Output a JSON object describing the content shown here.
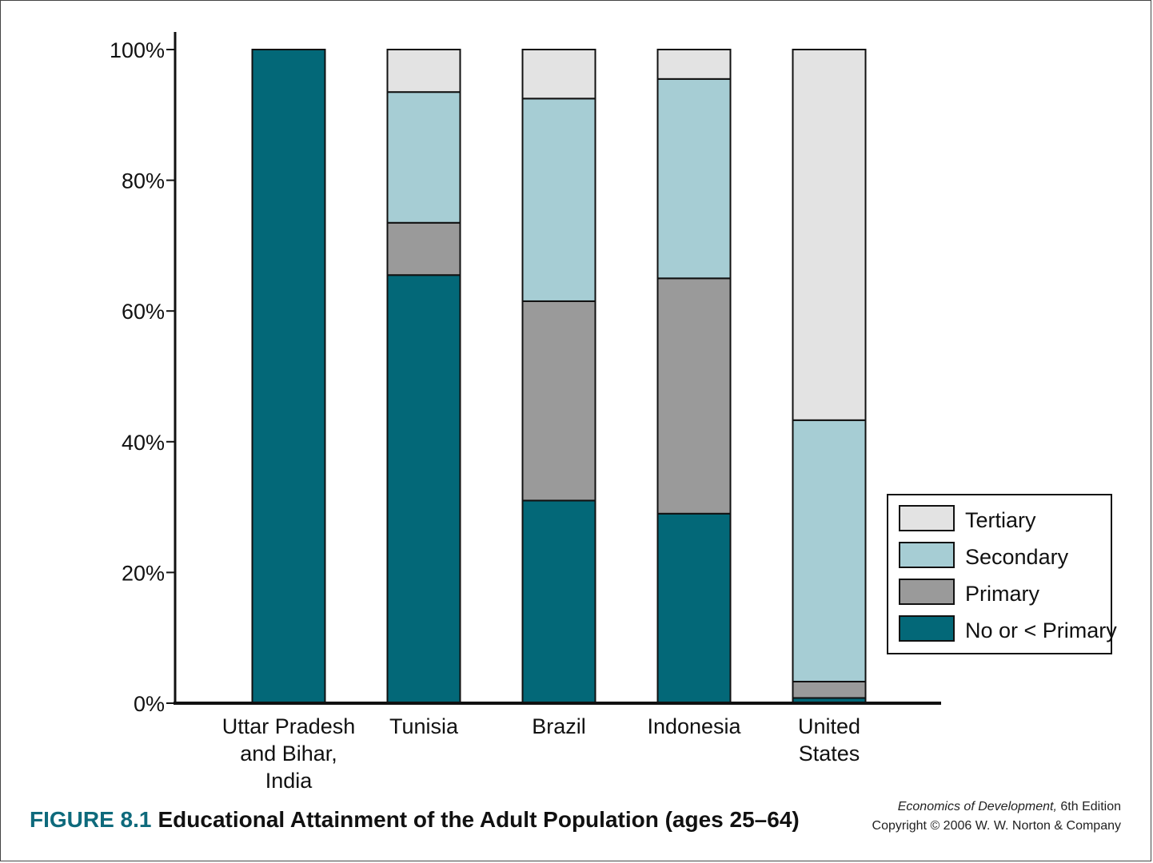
{
  "chart_data": {
    "type": "bar",
    "stacked": true,
    "categories": [
      [
        "Uttar Pradesh",
        "and Bihar,",
        "India"
      ],
      [
        "Tunisia"
      ],
      [
        "Brazil"
      ],
      [
        "Indonesia"
      ],
      [
        "United",
        "States"
      ]
    ],
    "series": [
      {
        "name": "No or < Primary",
        "color": "#036878",
        "values": [
          100,
          65.5,
          31,
          29,
          0.8
        ]
      },
      {
        "name": "Primary",
        "color": "#9a9a9a",
        "values": [
          0,
          8,
          30.5,
          36,
          2.5
        ]
      },
      {
        "name": "Secondary",
        "color": "#a6cdd4",
        "values": [
          0,
          20,
          31,
          30.5,
          40
        ]
      },
      {
        "name": "Tertiary",
        "color": "#e3e3e3",
        "values": [
          0,
          6.5,
          7.5,
          4.5,
          56.7
        ]
      }
    ],
    "ylim": [
      0,
      100
    ],
    "yticks": [
      0,
      20,
      40,
      60,
      80,
      100
    ],
    "ytick_labels": [
      "0%",
      "20%",
      "40%",
      "60%",
      "80%",
      "100%"
    ],
    "legend_order": [
      "Tertiary",
      "Secondary",
      "Primary",
      "No or < Primary"
    ],
    "legend_position": "bottom-right",
    "grid": false
  },
  "caption": {
    "figure_number": "FIGURE 8.1",
    "title": "Educational Attainment of the Adult Population (ages 25–64)"
  },
  "credit": {
    "book": "Economics of Development,",
    "edition": " 6th Edition",
    "copyright": "Copyright © 2006 W. W. Norton & Company"
  }
}
